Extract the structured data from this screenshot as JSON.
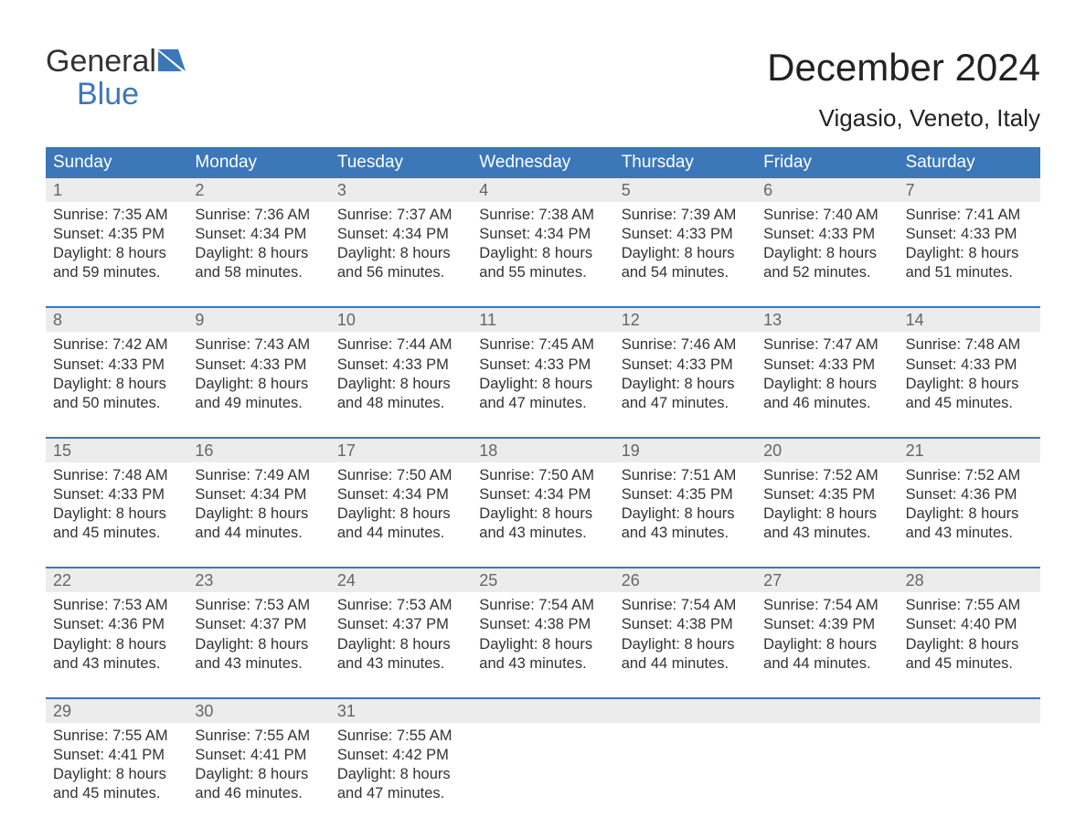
{
  "logo": {
    "word1": "General",
    "word2": "Blue",
    "mark_color": "#3b77b9"
  },
  "title": "December 2024",
  "location": "Vigasio, Veneto, Italy",
  "colors": {
    "header_bg": "#3b77b9",
    "header_fg": "#ffffff",
    "daynum_bg": "#ececec",
    "daynum_fg": "#666666",
    "text": "#333333",
    "week_border": "#3b77b9"
  },
  "weekdays": [
    "Sunday",
    "Monday",
    "Tuesday",
    "Wednesday",
    "Thursday",
    "Friday",
    "Saturday"
  ],
  "weeks": [
    [
      {
        "n": "1",
        "sr": "Sunrise: 7:35 AM",
        "ss": "Sunset: 4:35 PM",
        "d1": "Daylight: 8 hours",
        "d2": "and 59 minutes."
      },
      {
        "n": "2",
        "sr": "Sunrise: 7:36 AM",
        "ss": "Sunset: 4:34 PM",
        "d1": "Daylight: 8 hours",
        "d2": "and 58 minutes."
      },
      {
        "n": "3",
        "sr": "Sunrise: 7:37 AM",
        "ss": "Sunset: 4:34 PM",
        "d1": "Daylight: 8 hours",
        "d2": "and 56 minutes."
      },
      {
        "n": "4",
        "sr": "Sunrise: 7:38 AM",
        "ss": "Sunset: 4:34 PM",
        "d1": "Daylight: 8 hours",
        "d2": "and 55 minutes."
      },
      {
        "n": "5",
        "sr": "Sunrise: 7:39 AM",
        "ss": "Sunset: 4:33 PM",
        "d1": "Daylight: 8 hours",
        "d2": "and 54 minutes."
      },
      {
        "n": "6",
        "sr": "Sunrise: 7:40 AM",
        "ss": "Sunset: 4:33 PM",
        "d1": "Daylight: 8 hours",
        "d2": "and 52 minutes."
      },
      {
        "n": "7",
        "sr": "Sunrise: 7:41 AM",
        "ss": "Sunset: 4:33 PM",
        "d1": "Daylight: 8 hours",
        "d2": "and 51 minutes."
      }
    ],
    [
      {
        "n": "8",
        "sr": "Sunrise: 7:42 AM",
        "ss": "Sunset: 4:33 PM",
        "d1": "Daylight: 8 hours",
        "d2": "and 50 minutes."
      },
      {
        "n": "9",
        "sr": "Sunrise: 7:43 AM",
        "ss": "Sunset: 4:33 PM",
        "d1": "Daylight: 8 hours",
        "d2": "and 49 minutes."
      },
      {
        "n": "10",
        "sr": "Sunrise: 7:44 AM",
        "ss": "Sunset: 4:33 PM",
        "d1": "Daylight: 8 hours",
        "d2": "and 48 minutes."
      },
      {
        "n": "11",
        "sr": "Sunrise: 7:45 AM",
        "ss": "Sunset: 4:33 PM",
        "d1": "Daylight: 8 hours",
        "d2": "and 47 minutes."
      },
      {
        "n": "12",
        "sr": "Sunrise: 7:46 AM",
        "ss": "Sunset: 4:33 PM",
        "d1": "Daylight: 8 hours",
        "d2": "and 47 minutes."
      },
      {
        "n": "13",
        "sr": "Sunrise: 7:47 AM",
        "ss": "Sunset: 4:33 PM",
        "d1": "Daylight: 8 hours",
        "d2": "and 46 minutes."
      },
      {
        "n": "14",
        "sr": "Sunrise: 7:48 AM",
        "ss": "Sunset: 4:33 PM",
        "d1": "Daylight: 8 hours",
        "d2": "and 45 minutes."
      }
    ],
    [
      {
        "n": "15",
        "sr": "Sunrise: 7:48 AM",
        "ss": "Sunset: 4:33 PM",
        "d1": "Daylight: 8 hours",
        "d2": "and 45 minutes."
      },
      {
        "n": "16",
        "sr": "Sunrise: 7:49 AM",
        "ss": "Sunset: 4:34 PM",
        "d1": "Daylight: 8 hours",
        "d2": "and 44 minutes."
      },
      {
        "n": "17",
        "sr": "Sunrise: 7:50 AM",
        "ss": "Sunset: 4:34 PM",
        "d1": "Daylight: 8 hours",
        "d2": "and 44 minutes."
      },
      {
        "n": "18",
        "sr": "Sunrise: 7:50 AM",
        "ss": "Sunset: 4:34 PM",
        "d1": "Daylight: 8 hours",
        "d2": "and 43 minutes."
      },
      {
        "n": "19",
        "sr": "Sunrise: 7:51 AM",
        "ss": "Sunset: 4:35 PM",
        "d1": "Daylight: 8 hours",
        "d2": "and 43 minutes."
      },
      {
        "n": "20",
        "sr": "Sunrise: 7:52 AM",
        "ss": "Sunset: 4:35 PM",
        "d1": "Daylight: 8 hours",
        "d2": "and 43 minutes."
      },
      {
        "n": "21",
        "sr": "Sunrise: 7:52 AM",
        "ss": "Sunset: 4:36 PM",
        "d1": "Daylight: 8 hours",
        "d2": "and 43 minutes."
      }
    ],
    [
      {
        "n": "22",
        "sr": "Sunrise: 7:53 AM",
        "ss": "Sunset: 4:36 PM",
        "d1": "Daylight: 8 hours",
        "d2": "and 43 minutes."
      },
      {
        "n": "23",
        "sr": "Sunrise: 7:53 AM",
        "ss": "Sunset: 4:37 PM",
        "d1": "Daylight: 8 hours",
        "d2": "and 43 minutes."
      },
      {
        "n": "24",
        "sr": "Sunrise: 7:53 AM",
        "ss": "Sunset: 4:37 PM",
        "d1": "Daylight: 8 hours",
        "d2": "and 43 minutes."
      },
      {
        "n": "25",
        "sr": "Sunrise: 7:54 AM",
        "ss": "Sunset: 4:38 PM",
        "d1": "Daylight: 8 hours",
        "d2": "and 43 minutes."
      },
      {
        "n": "26",
        "sr": "Sunrise: 7:54 AM",
        "ss": "Sunset: 4:38 PM",
        "d1": "Daylight: 8 hours",
        "d2": "and 44 minutes."
      },
      {
        "n": "27",
        "sr": "Sunrise: 7:54 AM",
        "ss": "Sunset: 4:39 PM",
        "d1": "Daylight: 8 hours",
        "d2": "and 44 minutes."
      },
      {
        "n": "28",
        "sr": "Sunrise: 7:55 AM",
        "ss": "Sunset: 4:40 PM",
        "d1": "Daylight: 8 hours",
        "d2": "and 45 minutes."
      }
    ],
    [
      {
        "n": "29",
        "sr": "Sunrise: 7:55 AM",
        "ss": "Sunset: 4:41 PM",
        "d1": "Daylight: 8 hours",
        "d2": "and 45 minutes."
      },
      {
        "n": "30",
        "sr": "Sunrise: 7:55 AM",
        "ss": "Sunset: 4:41 PM",
        "d1": "Daylight: 8 hours",
        "d2": "and 46 minutes."
      },
      {
        "n": "31",
        "sr": "Sunrise: 7:55 AM",
        "ss": "Sunset: 4:42 PM",
        "d1": "Daylight: 8 hours",
        "d2": "and 47 minutes."
      },
      null,
      null,
      null,
      null
    ]
  ]
}
